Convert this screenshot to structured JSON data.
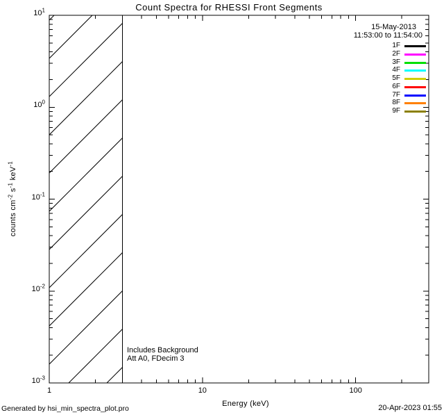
{
  "colors": {
    "background": "#FFFFFF",
    "foreground": "#000000"
  },
  "chart_data": {
    "type": "line",
    "title": "Count Spectra for RHESSI Front Segments",
    "xlabel": "Energy (keV)",
    "ylabel": "counts cm^-2 s^-1 keV^-1",
    "ylabel_segments": [
      {
        "t": "counts cm"
      },
      {
        "sup": "-2"
      },
      {
        "t": " s"
      },
      {
        "sup": "-1"
      },
      {
        "t": " keV"
      },
      {
        "sup": "-1"
      }
    ],
    "xscale": "log",
    "yscale": "log",
    "xlim": [
      1,
      300
    ],
    "ylim": [
      0.001,
      10
    ],
    "grid": false,
    "x_major_ticks": [
      1,
      10,
      100
    ],
    "x_tick_labels": [
      "1",
      "10",
      "100"
    ],
    "y_major_ticks": [
      10,
      1,
      0.1,
      0.01,
      0.001
    ],
    "y_tick_labels": [
      {
        "base": "10",
        "exp": "1"
      },
      {
        "base": "10",
        "exp": "0"
      },
      {
        "base": "10",
        "exp": "-1"
      },
      {
        "base": "10",
        "exp": "-2"
      },
      {
        "base": "10",
        "exp": "-3"
      }
    ],
    "hatched_region": {
      "x_start": 1,
      "x_end": 3,
      "style": "diagonal-hatch-45deg",
      "line_color": "#000000"
    },
    "series": [],
    "legend": {
      "position": "top-right-inside",
      "date": "15-May-2013",
      "time_range": "11:53:00 to 11:54:00",
      "entries": [
        {
          "label": "1F",
          "color": "#000000"
        },
        {
          "label": "2F",
          "color": "#FF00FF"
        },
        {
          "label": "3F",
          "color": "#00E000"
        },
        {
          "label": "4F",
          "color": "#00FFFF"
        },
        {
          "label": "5F",
          "color": "#D0D000"
        },
        {
          "label": "6F",
          "color": "#FF0000"
        },
        {
          "label": "7F",
          "color": "#0000FF"
        },
        {
          "label": "8F",
          "color": "#FF8000"
        },
        {
          "label": "9F",
          "color": "#8B8000"
        }
      ]
    },
    "annotations": [
      "Includes Background",
      "Att A0, FDecim 3"
    ],
    "footer_left": "Generated by hsi_min_spectra_plot.pro",
    "footer_right": "20-Apr-2023 01:55"
  }
}
